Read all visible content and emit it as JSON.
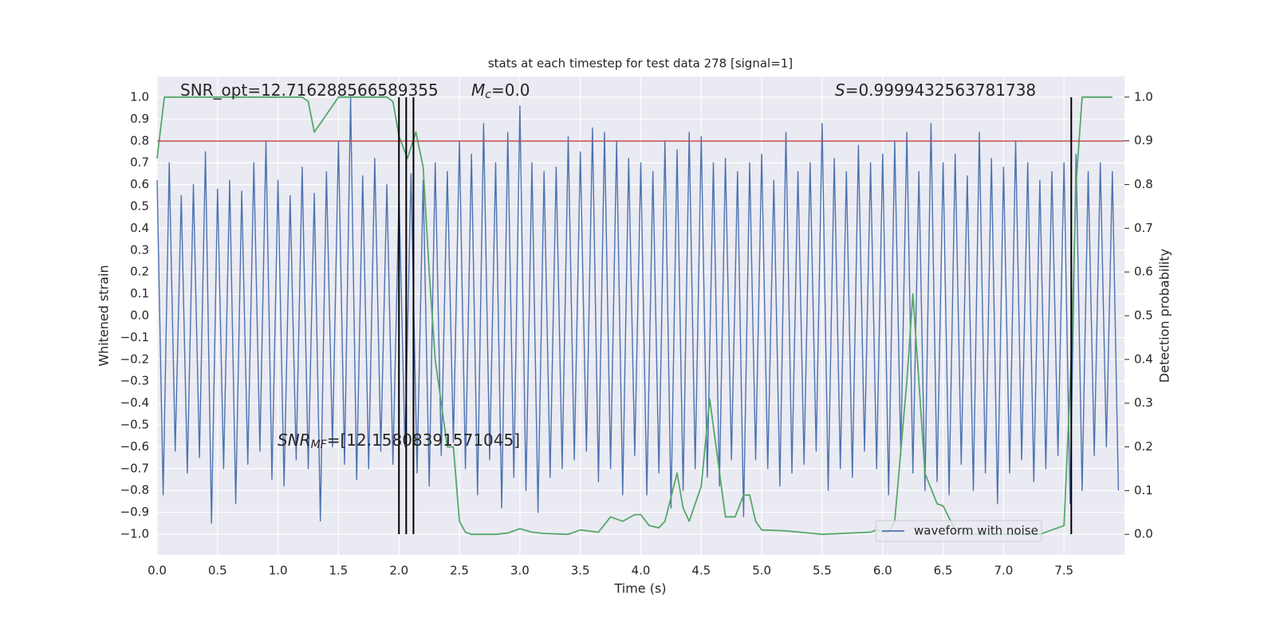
{
  "chart_data": {
    "type": "line",
    "title": "stats at each timestep for test data 278 [signal=1]",
    "xlabel": "Time (s)",
    "ylabel": "Whitened strain",
    "y2label": "Detection probability",
    "xlim": [
      0,
      8
    ],
    "ylim": [
      -1.095,
      1.095
    ],
    "y2lim": [
      -0.047,
      1.047
    ],
    "xticks": [
      {
        "value": 0,
        "label": "0.0"
      },
      {
        "value": 0.5,
        "label": "0.5"
      },
      {
        "value": 1,
        "label": "1.0"
      },
      {
        "value": 1.5,
        "label": "1.5"
      },
      {
        "value": 2,
        "label": "2.0"
      },
      {
        "value": 2.5,
        "label": "2.5"
      },
      {
        "value": 3,
        "label": "3.0"
      },
      {
        "value": 3.5,
        "label": "3.5"
      },
      {
        "value": 4,
        "label": "4.0"
      },
      {
        "value": 4.5,
        "label": "4.5"
      },
      {
        "value": 5,
        "label": "5.0"
      },
      {
        "value": 5.5,
        "label": "5.5"
      },
      {
        "value": 6,
        "label": "6.0"
      },
      {
        "value": 6.5,
        "label": "6.5"
      },
      {
        "value": 7,
        "label": "7.0"
      },
      {
        "value": 7.5,
        "label": "7.5"
      }
    ],
    "yticks": [
      {
        "value": -1,
        "label": "−1.0"
      },
      {
        "value": -0.9,
        "label": "−0.9"
      },
      {
        "value": -0.8,
        "label": "−0.8"
      },
      {
        "value": -0.7,
        "label": "−0.7"
      },
      {
        "value": -0.6,
        "label": "−0.6"
      },
      {
        "value": -0.5,
        "label": "−0.5"
      },
      {
        "value": -0.4,
        "label": "−0.4"
      },
      {
        "value": -0.3,
        "label": "−0.3"
      },
      {
        "value": -0.2,
        "label": "−0.2"
      },
      {
        "value": -0.1,
        "label": "−0.1"
      },
      {
        "value": 0,
        "label": "0.0"
      },
      {
        "value": 0.1,
        "label": "0.1"
      },
      {
        "value": 0.2,
        "label": "0.2"
      },
      {
        "value": 0.3,
        "label": "0.3"
      },
      {
        "value": 0.4,
        "label": "0.4"
      },
      {
        "value": 0.5,
        "label": "0.5"
      },
      {
        "value": 0.6,
        "label": "0.6"
      },
      {
        "value": 0.7,
        "label": "0.7"
      },
      {
        "value": 0.8,
        "label": "0.8"
      },
      {
        "value": 0.9,
        "label": "0.9"
      },
      {
        "value": 1,
        "label": "1.0"
      }
    ],
    "y2ticks": [
      {
        "value": 0,
        "label": "0.0"
      },
      {
        "value": 0.1,
        "label": "0.1"
      },
      {
        "value": 0.2,
        "label": "0.2"
      },
      {
        "value": 0.3,
        "label": "0.3"
      },
      {
        "value": 0.4,
        "label": "0.4"
      },
      {
        "value": 0.5,
        "label": "0.5"
      },
      {
        "value": 0.6,
        "label": "0.6"
      },
      {
        "value": 0.7,
        "label": "0.7"
      },
      {
        "value": 0.8,
        "label": "0.8"
      },
      {
        "value": 0.9,
        "label": "0.9"
      },
      {
        "value": 1,
        "label": "1.0"
      }
    ],
    "grid": true,
    "legend": "lower right",
    "series": [
      {
        "name": "waveform with noise",
        "color": "#4c72b0",
        "x": [
          0,
          0.05,
          0.1,
          0.15,
          0.2,
          0.25,
          0.3,
          0.35,
          0.4,
          0.45,
          0.5,
          0.55,
          0.6,
          0.65,
          0.7,
          0.75,
          0.8,
          0.85,
          0.9,
          0.95,
          1,
          1.05,
          1.1,
          1.15,
          1.2,
          1.25,
          1.3,
          1.35,
          1.4,
          1.45,
          1.5,
          1.55,
          1.6,
          1.65,
          1.7,
          1.75,
          1.8,
          1.85,
          1.9,
          1.95,
          2,
          2.05,
          2.1,
          2.15,
          2.2,
          2.25,
          2.3,
          2.35,
          2.4,
          2.45,
          2.5,
          2.55,
          2.6,
          2.65,
          2.7,
          2.75,
          2.8,
          2.85,
          2.9,
          2.95,
          3,
          3.05,
          3.1,
          3.15,
          3.2,
          3.25,
          3.3,
          3.35,
          3.4,
          3.45,
          3.5,
          3.55,
          3.6,
          3.65,
          3.7,
          3.75,
          3.8,
          3.85,
          3.9,
          3.95,
          4,
          4.05,
          4.1,
          4.15,
          4.2,
          4.25,
          4.3,
          4.35,
          4.4,
          4.45,
          4.5,
          4.55,
          4.6,
          4.65,
          4.7,
          4.75,
          4.8,
          4.85,
          4.9,
          4.95,
          5,
          5.05,
          5.1,
          5.15,
          5.2,
          5.25,
          5.3,
          5.35,
          5.4,
          5.45,
          5.5,
          5.55,
          5.6,
          5.65,
          5.7,
          5.75,
          5.8,
          5.85,
          5.9,
          5.95,
          6,
          6.05,
          6.1,
          6.15,
          6.2,
          6.25,
          6.3,
          6.35,
          6.4,
          6.45,
          6.5,
          6.55,
          6.6,
          6.65,
          6.7,
          6.75,
          6.8,
          6.85,
          6.9,
          6.95,
          7,
          7.05,
          7.1,
          7.15,
          7.2,
          7.25,
          7.3,
          7.35,
          7.4,
          7.45,
          7.5,
          7.55,
          7.6,
          7.65,
          7.7,
          7.75,
          7.8,
          7.85,
          7.9,
          7.95
        ],
        "values": [
          0.62,
          -0.82,
          0.7,
          -0.62,
          0.55,
          -0.72,
          0.6,
          -0.65,
          0.75,
          -0.95,
          0.58,
          -0.7,
          0.62,
          -0.86,
          0.57,
          -0.68,
          0.7,
          -0.62,
          0.8,
          -0.75,
          0.62,
          -0.78,
          0.55,
          -0.66,
          0.68,
          -0.7,
          0.56,
          -0.94,
          0.66,
          -0.6,
          0.8,
          -0.68,
          1.0,
          -0.75,
          0.64,
          -0.7,
          0.72,
          -0.62,
          0.6,
          -0.68,
          0.55,
          -0.6,
          0.65,
          -0.72,
          0.62,
          -0.78,
          0.7,
          -0.64,
          0.66,
          -0.58,
          0.8,
          -0.7,
          0.74,
          -0.82,
          0.88,
          -0.66,
          0.7,
          -0.88,
          0.84,
          -0.74,
          0.96,
          -0.8,
          0.7,
          -0.9,
          0.66,
          -0.74,
          0.68,
          -0.7,
          0.82,
          -0.66,
          0.75,
          -0.62,
          0.86,
          -0.76,
          0.84,
          -0.7,
          0.8,
          -0.82,
          0.72,
          -0.64,
          0.7,
          -0.82,
          0.66,
          -0.72,
          0.8,
          -0.88,
          0.76,
          -0.8,
          0.84,
          -0.7,
          0.82,
          -0.74,
          0.7,
          -0.78,
          0.72,
          -0.66,
          0.66,
          -0.92,
          0.7,
          -0.66,
          0.74,
          -0.7,
          0.62,
          -0.78,
          0.84,
          -0.72,
          0.66,
          -0.68,
          0.7,
          -0.62,
          0.88,
          -0.8,
          0.72,
          -0.7,
          0.66,
          -0.74,
          0.78,
          -0.62,
          0.7,
          -0.7,
          0.74,
          -0.82,
          0.8,
          -0.64,
          0.84,
          -0.72,
          0.66,
          -0.8,
          0.88,
          -0.76,
          0.7,
          -0.82,
          0.74,
          -0.68,
          0.64,
          -0.8,
          0.84,
          -0.72,
          0.72,
          -0.86,
          0.68,
          -0.72,
          0.8,
          -0.66,
          0.7,
          -0.76,
          0.62,
          -0.7,
          0.66,
          -0.64,
          0.7,
          -0.86,
          0.74,
          -0.8,
          0.66,
          -0.64,
          0.7,
          -0.6,
          0.66,
          -0.8
        ]
      },
      {
        "color": "#55a868",
        "axis": "y2",
        "x": [
          0,
          0.06,
          0.1,
          0.5,
          1,
          1.2,
          1.25,
          1.3,
          1.4,
          1.45,
          1.5,
          1.9,
          1.95,
          2,
          2.07,
          2.14,
          2.2,
          2.25,
          2.3,
          2.4,
          2.45,
          2.5,
          2.55,
          2.6,
          2.8,
          2.9,
          3,
          3.1,
          3.2,
          3.4,
          3.5,
          3.65,
          3.75,
          3.85,
          3.95,
          4,
          4.07,
          4.15,
          4.2,
          4.3,
          4.35,
          4.4,
          4.5,
          4.57,
          4.7,
          4.78,
          4.85,
          4.9,
          4.95,
          5,
          5.2,
          5.5,
          5.9,
          5.95,
          6,
          6.05,
          6.1,
          6.2,
          6.25,
          6.3,
          6.35,
          6.45,
          6.5,
          6.6,
          6.7,
          7,
          7.3,
          7.4,
          7.5,
          7.56,
          7.6,
          7.65,
          7.7,
          7.9
        ],
        "values": [
          0.86,
          1,
          1,
          1,
          1,
          1,
          0.99,
          0.92,
          0.96,
          0.98,
          1,
          1,
          0.99,
          0.91,
          0.86,
          0.92,
          0.84,
          0.6,
          0.4,
          0.2,
          0.2,
          0.03,
          0.005,
          0,
          0,
          0.003,
          0.013,
          0.005,
          0.002,
          0,
          0.01,
          0.005,
          0.04,
          0.03,
          0.045,
          0.045,
          0.02,
          0.015,
          0.03,
          0.14,
          0.06,
          0.03,
          0.11,
          0.31,
          0.04,
          0.04,
          0.09,
          0.09,
          0.03,
          0.01,
          0.008,
          0,
          0.005,
          0.01,
          0.005,
          0.005,
          0.03,
          0.35,
          0.55,
          0.35,
          0.14,
          0.07,
          0.065,
          0.01,
          0,
          0,
          0,
          0.01,
          0.02,
          0.4,
          0.8,
          1,
          1,
          1
        ]
      }
    ],
    "hlines": [
      {
        "y": 0.8,
        "color": "#c44e52"
      }
    ],
    "vlines": {
      "x": [
        2.0,
        2.06,
        2.12,
        7.56
      ],
      "ymin": -1,
      "ymax": 1,
      "color": "#000000"
    },
    "annotations": [
      {
        "main": "SNR_opt=12.716288566589355"
      },
      {
        "main": "M",
        "sub": "c",
        "rest": "=0.0"
      },
      {
        "main": "S",
        "rest": "=0.9999432563781738"
      },
      {
        "main": "SNR",
        "sub": "MF",
        "rest": "=[12.15808391571045]"
      }
    ]
  }
}
